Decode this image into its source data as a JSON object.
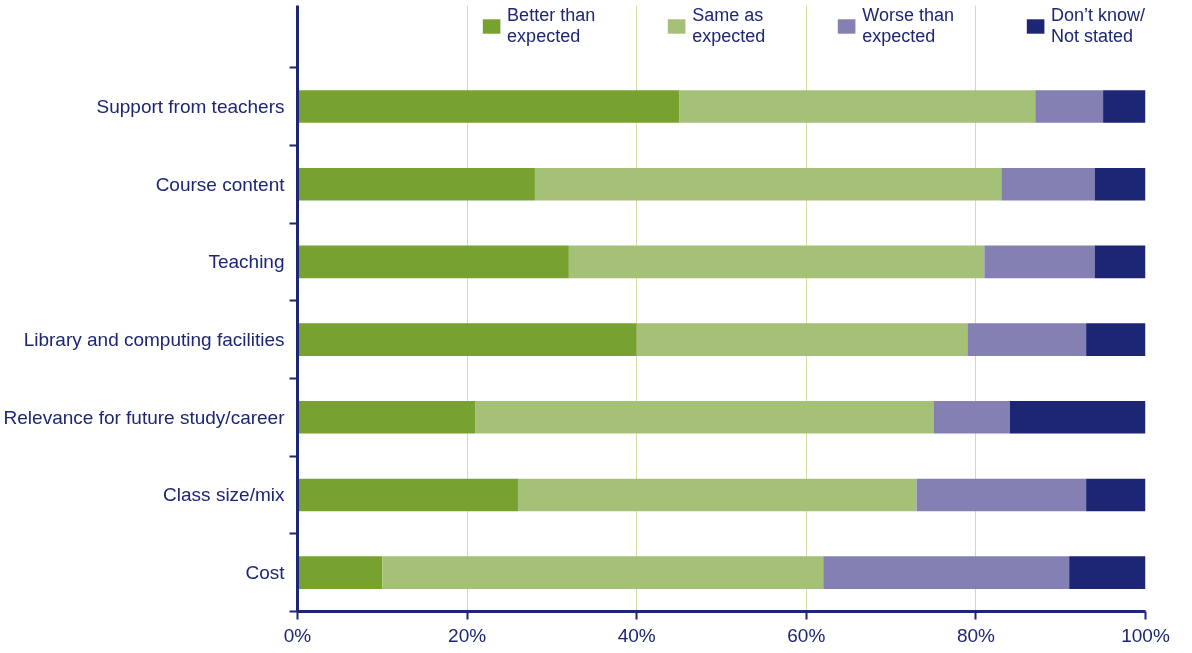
{
  "chart_data": {
    "type": "bar",
    "orientation": "horizontal",
    "stacked": true,
    "categories": [
      "Support from teachers",
      "Course content",
      "Teaching",
      "Library and computing facilities",
      "Relevance for future study/career",
      "Class size/mix",
      "Cost"
    ],
    "series": [
      {
        "name": "Better than\nexpected",
        "color": "#78a22f",
        "values": [
          45,
          28,
          32,
          40,
          21,
          26,
          10
        ]
      },
      {
        "name": "Same as\nexpected",
        "color": "#a5c178",
        "values": [
          42,
          55,
          49,
          39,
          54,
          47,
          52
        ]
      },
      {
        "name": "Worse than\nexpected",
        "color": "#8480b3",
        "values": [
          8,
          11,
          13,
          14,
          9,
          20,
          29
        ]
      },
      {
        "name": "Don’t know/\nNot stated",
        "color": "#1c2674",
        "values": [
          5,
          6,
          6,
          7,
          16,
          7,
          9
        ]
      }
    ],
    "xlim": [
      0,
      100
    ],
    "xticks": [
      {
        "value": 0,
        "label": "0%"
      },
      {
        "value": 20,
        "label": "20%"
      },
      {
        "value": 40,
        "label": "40%"
      },
      {
        "value": 60,
        "label": "60%"
      },
      {
        "value": 80,
        "label": "80%"
      },
      {
        "value": 100,
        "label": "100%"
      }
    ],
    "grid": "x",
    "legend": "top"
  }
}
